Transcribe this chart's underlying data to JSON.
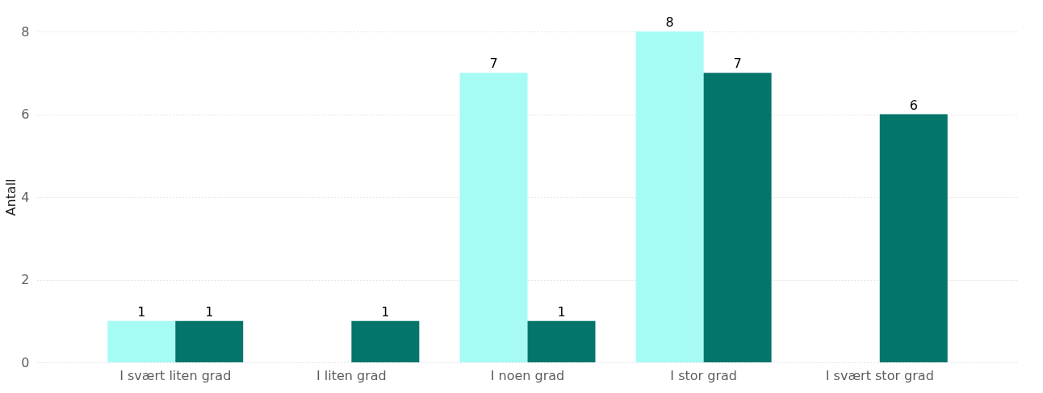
{
  "chart_data": {
    "type": "bar",
    "ylabel": "Antall",
    "categories": [
      "I svært liten grad",
      "I liten grad",
      "I noen grad",
      "I stor grad",
      "I svært stor grad"
    ],
    "series": [
      {
        "color": "#a6fcf5",
        "values": [
          1,
          null,
          7,
          8,
          null
        ]
      },
      {
        "color": "#03756b",
        "values": [
          1,
          1,
          1,
          7,
          6
        ]
      }
    ],
    "ylim": [
      0,
      8
    ],
    "yticks": [
      0,
      2,
      4,
      6,
      8
    ],
    "grid": "y",
    "data_labels": true,
    "legend": false
  }
}
